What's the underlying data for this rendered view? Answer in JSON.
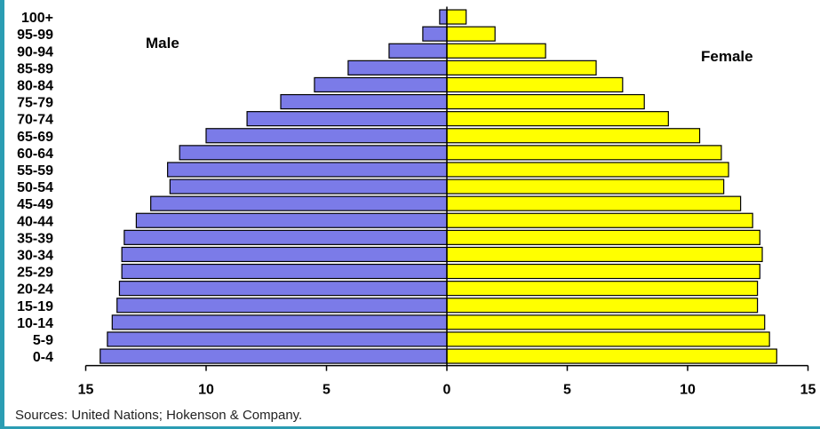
{
  "chart_data": {
    "type": "bar",
    "orientation": "horizontal-population-pyramid",
    "categories": [
      "0-4",
      "5-9",
      "10-14",
      "15-19",
      "20-24",
      "25-29",
      "30-34",
      "35-39",
      "40-44",
      "45-49",
      "50-54",
      "55-59",
      "60-64",
      "65-69",
      "70-74",
      "75-79",
      "80-84",
      "85-89",
      "90-94",
      "95-99",
      "100+"
    ],
    "series": [
      {
        "name": "Male",
        "color": "#7b7be8",
        "side": "left",
        "values": [
          14.4,
          14.1,
          13.9,
          13.7,
          13.6,
          13.5,
          13.5,
          13.4,
          12.9,
          12.3,
          11.5,
          11.6,
          11.1,
          10.0,
          8.3,
          6.9,
          5.5,
          4.1,
          2.4,
          1.0,
          0.3
        ]
      },
      {
        "name": "Female",
        "color": "#ffff00",
        "side": "right",
        "values": [
          13.7,
          13.4,
          13.2,
          12.9,
          12.9,
          13.0,
          13.1,
          13.0,
          12.7,
          12.2,
          11.5,
          11.7,
          11.4,
          10.5,
          9.2,
          8.2,
          7.3,
          6.2,
          4.1,
          2.0,
          0.8
        ]
      }
    ],
    "xticks": [
      "15",
      "10",
      "5",
      "0",
      "5",
      "10",
      "15"
    ],
    "xlim": [
      -15,
      15
    ],
    "grid": false
  },
  "labels": {
    "male": "Male",
    "female": "Female"
  },
  "source_text": "Sources: United Nations; Hokenson & Company."
}
